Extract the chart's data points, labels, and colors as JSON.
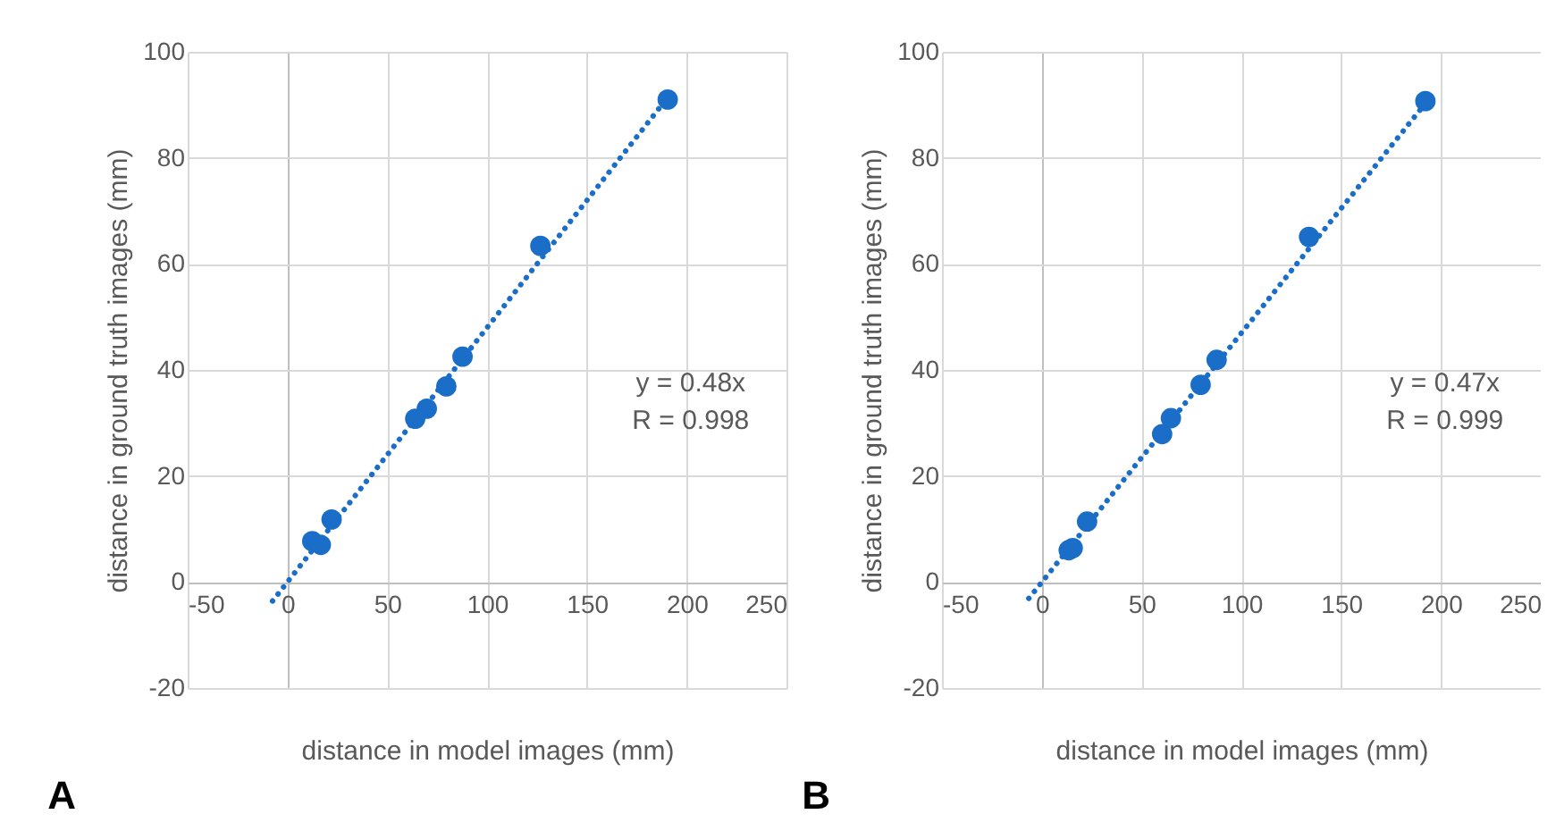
{
  "chart_data": [
    {
      "type": "scatter",
      "title": "A",
      "xlabel": "distance in model images (mm)",
      "ylabel": "distance in ground truth images (mm)",
      "xlim": [
        -50,
        250
      ],
      "xticks": [
        -50,
        0,
        50,
        100,
        150,
        200,
        250
      ],
      "ylim": [
        -20,
        100
      ],
      "yticks": [
        -20,
        0,
        20,
        40,
        60,
        80,
        100
      ],
      "grid": true,
      "marker": "circle",
      "annotations": [
        "y = 0.48x",
        "R = 0.998"
      ],
      "series": [
        {
          "type": "scatter",
          "color": "#1a6ec8",
          "x": [
            190.5,
            126.7,
            87.7,
            79.6,
            69.8,
            64,
            22.1,
            12.4,
            16.7
          ],
          "values": [
            91,
            63.4,
            42.5,
            36.9,
            32.7,
            30.8,
            11.8,
            7.7,
            7.0
          ]
        },
        {
          "type": "line",
          "color": "#1a6ec8",
          "line_style": "dotted",
          "marker": "none",
          "x": [
            -7.5,
            190.5
          ],
          "values": [
            -3.6,
            91.4
          ]
        }
      ]
    },
    {
      "type": "scatter",
      "title": "B",
      "xlabel": "distance in model images (mm)",
      "ylabel": "distance in ground truth images (mm)",
      "xlim": [
        -50,
        250
      ],
      "xticks": [
        -50,
        0,
        50,
        100,
        150,
        200,
        250
      ],
      "ylim": [
        -20,
        100
      ],
      "yticks": [
        -20,
        0,
        20,
        40,
        60,
        80,
        100
      ],
      "grid": true,
      "marker": "circle",
      "annotations": [
        "y = 0.47x",
        "R = 0.999"
      ],
      "series": [
        {
          "type": "scatter",
          "color": "#1a6ec8",
          "x": [
            192.2,
            133.9,
            87.6,
            79.6,
            64.7,
            60.3,
            22.7,
            15.5,
            13.5
          ],
          "values": [
            90.7,
            65.1,
            41.9,
            37.2,
            30.9,
            27.9,
            11.4,
            6.4,
            6.0
          ]
        },
        {
          "type": "line",
          "color": "#1a6ec8",
          "line_style": "dotted",
          "marker": "none",
          "x": [
            -6.5,
            192
          ],
          "values": [
            -3.1,
            90.2
          ]
        }
      ]
    }
  ]
}
